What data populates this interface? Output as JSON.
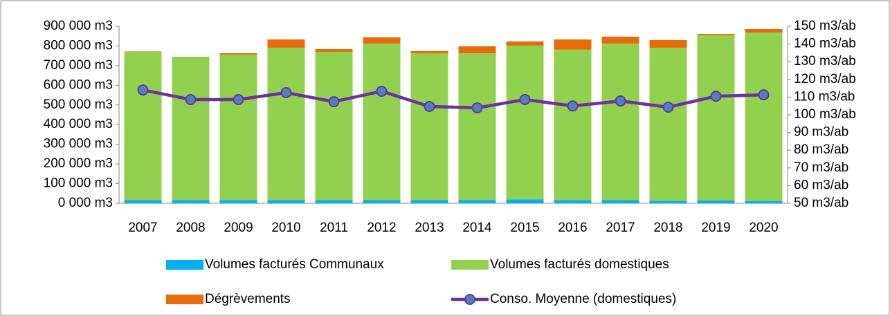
{
  "chart_data": {
    "type": "bar",
    "categories": [
      "2007",
      "2008",
      "2009",
      "2010",
      "2011",
      "2012",
      "2013",
      "2014",
      "2015",
      "2016",
      "2017",
      "2018",
      "2019",
      "2020"
    ],
    "series": [
      {
        "name": "Volumes facturés Communaux",
        "color": "#00b0f0",
        "values": [
          17000,
          16000,
          16000,
          17000,
          17000,
          16000,
          16000,
          17000,
          20000,
          16000,
          16000,
          13000,
          15000,
          12000
        ]
      },
      {
        "name": "Volumes facturés domestiques",
        "color": "#92d050",
        "values": [
          753000,
          729000,
          740000,
          774000,
          753000,
          796000,
          747000,
          746000,
          782000,
          765000,
          796000,
          778000,
          839000,
          856000
        ]
      },
      {
        "name": "Dégrèvements",
        "color": "#e46c0a",
        "values": [
          2000,
          0,
          7000,
          42000,
          14000,
          32000,
          11000,
          35000,
          21000,
          52000,
          35000,
          39000,
          7000,
          18000
        ]
      },
      {
        "name": "Conso. Moyenne (domestiques)",
        "color": "#7030a0",
        "type": "line",
        "axis": "y2",
        "values": [
          114,
          108.6,
          108.6,
          112.5,
          107.4,
          113.3,
          104.7,
          103.9,
          108.6,
          105,
          107.8,
          104.3,
          110.5,
          111.3
        ]
      }
    ],
    "ylim": [
      0,
      900000
    ],
    "yticks": [
      {
        "value": 0,
        "label": "0 000 m3"
      },
      {
        "value": 100000,
        "label": "100 000 m3"
      },
      {
        "value": 200000,
        "label": "200 000 m3"
      },
      {
        "value": 300000,
        "label": "300 000 m3"
      },
      {
        "value": 400000,
        "label": "400 000 m3"
      },
      {
        "value": 500000,
        "label": "500 000 m3"
      },
      {
        "value": 600000,
        "label": "600 000 m3"
      },
      {
        "value": 700000,
        "label": "700 000 m3"
      },
      {
        "value": 800000,
        "label": "800 000 m3"
      },
      {
        "value": 900000,
        "label": "900 000 m3"
      }
    ],
    "y2lim": [
      50,
      150
    ],
    "y2ticks": [
      {
        "value": 50,
        "label": "50 m3/ab"
      },
      {
        "value": 60,
        "label": "60 m3/ab"
      },
      {
        "value": 70,
        "label": "70 m3/ab"
      },
      {
        "value": 80,
        "label": "80 m3/ab"
      },
      {
        "value": 90,
        "label": "90 m3/ab"
      },
      {
        "value": 100,
        "label": "100 m3/ab"
      },
      {
        "value": 110,
        "label": "110 m3/ab"
      },
      {
        "value": 120,
        "label": "120 m3/ab"
      },
      {
        "value": 130,
        "label": "130 m3/ab"
      },
      {
        "value": 140,
        "label": "140 m3/ab"
      },
      {
        "value": 150,
        "label": "150 m3/ab"
      }
    ],
    "grid": false,
    "legend": "bottom"
  }
}
